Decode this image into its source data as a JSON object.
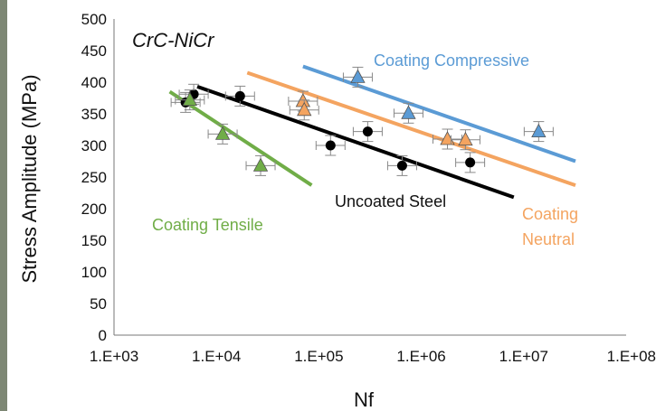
{
  "chart_data": {
    "type": "scatter",
    "title": "CrC-NiCr",
    "xlabel": "Nf",
    "ylabel": "Stress Amplitude  (MPa)",
    "x_scale": "log",
    "xlim": [
      1000,
      100000000
    ],
    "ylim": [
      0,
      500
    ],
    "x_tick_labels": [
      "1.E+03",
      "1.E+04",
      "1.E+05",
      "1.E+06",
      "1.E+07",
      "1.E+08"
    ],
    "x_tick_values": [
      1000,
      10000,
      100000,
      1000000,
      10000000,
      100000000
    ],
    "y_ticks": [
      0,
      50,
      100,
      150,
      200,
      250,
      300,
      350,
      400,
      450,
      500
    ],
    "grid": false,
    "series": [
      {
        "name": "Uncoated Steel",
        "marker": "circle",
        "color": "#000000",
        "points": [
          {
            "x": 5000,
            "y": 368
          },
          {
            "x": 6000,
            "y": 381
          },
          {
            "x": 17000,
            "y": 378
          },
          {
            "x": 130000,
            "y": 300
          },
          {
            "x": 300000,
            "y": 322
          },
          {
            "x": 650000,
            "y": 268
          },
          {
            "x": 3000000,
            "y": 273
          }
        ],
        "trend": [
          {
            "x": 6500,
            "y": 393
          },
          {
            "x": 8000000,
            "y": 218
          }
        ]
      },
      {
        "name": "Coating Tensile",
        "marker": "triangle",
        "color": "#70ad47",
        "points": [
          {
            "x": 5500,
            "y": 372
          },
          {
            "x": 11500,
            "y": 318
          },
          {
            "x": 27000,
            "y": 268
          }
        ],
        "trend": [
          {
            "x": 3500,
            "y": 385
          },
          {
            "x": 85000,
            "y": 237
          }
        ]
      },
      {
        "name": "Coating Neutral",
        "marker": "triangle",
        "color": "#f4a460",
        "points": [
          {
            "x": 70000,
            "y": 370
          },
          {
            "x": 72000,
            "y": 356
          },
          {
            "x": 1800000,
            "y": 310
          },
          {
            "x": 2700000,
            "y": 309
          }
        ],
        "trend": [
          {
            "x": 20000,
            "y": 415
          },
          {
            "x": 32000000,
            "y": 237
          }
        ]
      },
      {
        "name": "Coating Compressive",
        "marker": "triangle",
        "color": "#5b9bd5",
        "points": [
          {
            "x": 240000,
            "y": 408
          },
          {
            "x": 750000,
            "y": 351
          },
          {
            "x": 14000000,
            "y": 322
          }
        ],
        "trend": [
          {
            "x": 70000,
            "y": 425
          },
          {
            "x": 32000000,
            "y": 275
          }
        ]
      }
    ],
    "annotations": {
      "compressive": "Coating  Compressive",
      "tensile": "Coating  Tensile",
      "uncoated": "Uncoated  Steel",
      "neutral_line1": "Coating",
      "neutral_line2": "Neutral"
    }
  }
}
